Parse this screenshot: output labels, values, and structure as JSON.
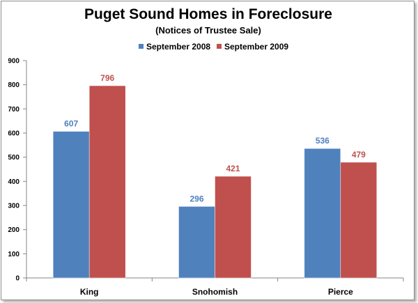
{
  "chart_data": {
    "type": "bar",
    "title": "Puget Sound Homes in Foreclosure",
    "subtitle": "(Notices of Trustee Sale)",
    "xlabel": "",
    "ylabel": "",
    "categories": [
      "King",
      "Snohomish",
      "Pierce"
    ],
    "series": [
      {
        "name": "September 2008",
        "values": [
          607,
          296,
          536
        ],
        "color": "#4f81bd"
      },
      {
        "name": "September 2009",
        "values": [
          796,
          421,
          479
        ],
        "color": "#c0504d"
      }
    ],
    "ylim": [
      0,
      900
    ],
    "yticks": [
      0,
      100,
      200,
      300,
      400,
      500,
      600,
      700,
      800,
      900
    ],
    "grid": false,
    "legend_position": "top",
    "data_labels": true
  }
}
